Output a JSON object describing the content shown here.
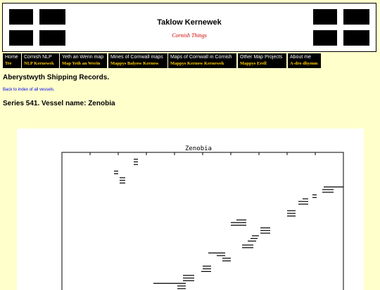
{
  "site": {
    "title": "Taklow Kernewek",
    "subtitle": "Cornish Things"
  },
  "nav": [
    {
      "label": "Home",
      "sublabel": "Tre"
    },
    {
      "label": "Cornish NLP",
      "sublabel": "NLP Kernewek"
    },
    {
      "label": "Yeth an Werin map",
      "sublabel": "Map Yeth an Werin"
    },
    {
      "label": "Mines of Cornwall maps",
      "sublabel": "Mappys Balyow Kernow"
    },
    {
      "label": "Maps of Cornwall in Cornish",
      "sublabel": "Mappys Kernow Kernewek"
    },
    {
      "label": "Other Map Projects",
      "sublabel": "Mappys Erell"
    },
    {
      "label": "About me",
      "sublabel": "A-dro dhymm"
    }
  ],
  "page": {
    "heading": "Aberystwyth Shipping Records.",
    "back_link": "Back to index of all vessels.",
    "series_heading": "Series 541. Vessel name: Zenobia"
  },
  "colors": {
    "background": "#ffffcc",
    "nav_bg": "#000000",
    "nav_sub": "#ffcc00",
    "subtitle": "#cc0000",
    "link": "#0000ee"
  },
  "chart_data": {
    "type": "timeline",
    "title": "Zenobia",
    "segments": [
      {
        "x": [
          0.255,
          0.27
        ],
        "y": 0.02
      },
      {
        "x": [
          0.255,
          0.27
        ],
        "y": 0.04
      },
      {
        "x": [
          0.255,
          0.27
        ],
        "y": 0.06
      },
      {
        "x": [
          0.185,
          0.2
        ],
        "y": 0.11
      },
      {
        "x": [
          0.185,
          0.2
        ],
        "y": 0.13
      },
      {
        "x": [
          0.205,
          0.225
        ],
        "y": 0.16
      },
      {
        "x": [
          0.205,
          0.225
        ],
        "y": 0.18
      },
      {
        "x": [
          0.205,
          0.225
        ],
        "y": 0.2
      },
      {
        "x": [
          0.93,
          1.0
        ],
        "y": 0.23
      },
      {
        "x": [
          0.925,
          0.965
        ],
        "y": 0.25
      },
      {
        "x": [
          0.925,
          0.965
        ],
        "y": 0.27
      },
      {
        "x": [
          0.89,
          0.905
        ],
        "y": 0.29
      },
      {
        "x": [
          0.89,
          0.905
        ],
        "y": 0.31
      },
      {
        "x": [
          0.855,
          0.875
        ],
        "y": 0.32
      },
      {
        "x": [
          0.84,
          0.875
        ],
        "y": 0.34
      },
      {
        "x": [
          0.84,
          0.875
        ],
        "y": 0.36
      },
      {
        "x": [
          0.8,
          0.83
        ],
        "y": 0.41
      },
      {
        "x": [
          0.8,
          0.83
        ],
        "y": 0.43
      },
      {
        "x": [
          0.8,
          0.83
        ],
        "y": 0.45
      },
      {
        "x": [
          0.62,
          0.655
        ],
        "y": 0.48
      },
      {
        "x": [
          0.6,
          0.655
        ],
        "y": 0.5
      },
      {
        "x": [
          0.6,
          0.655
        ],
        "y": 0.52
      },
      {
        "x": [
          0.705,
          0.74
        ],
        "y": 0.54
      },
      {
        "x": [
          0.705,
          0.74
        ],
        "y": 0.56
      },
      {
        "x": [
          0.705,
          0.74
        ],
        "y": 0.58
      },
      {
        "x": [
          0.675,
          0.7
        ],
        "y": 0.6
      },
      {
        "x": [
          0.67,
          0.695
        ],
        "y": 0.62
      },
      {
        "x": [
          0.66,
          0.69
        ],
        "y": 0.64
      },
      {
        "x": [
          0.64,
          0.68
        ],
        "y": 0.67
      },
      {
        "x": [
          0.64,
          0.68
        ],
        "y": 0.69
      },
      {
        "x": [
          0.52,
          0.58
        ],
        "y": 0.73
      },
      {
        "x": [
          0.55,
          0.58
        ],
        "y": 0.75
      },
      {
        "x": [
          0.57,
          0.6
        ],
        "y": 0.77
      },
      {
        "x": [
          0.57,
          0.6
        ],
        "y": 0.79
      },
      {
        "x": [
          0.5,
          0.53
        ],
        "y": 0.83
      },
      {
        "x": [
          0.5,
          0.53
        ],
        "y": 0.85
      },
      {
        "x": [
          0.495,
          0.53
        ],
        "y": 0.87
      },
      {
        "x": [
          0.43,
          0.47
        ],
        "y": 0.9
      },
      {
        "x": [
          0.43,
          0.47
        ],
        "y": 0.92
      },
      {
        "x": [
          0.43,
          0.47
        ],
        "y": 0.94
      },
      {
        "x": [
          0.325,
          0.44
        ],
        "y": 0.96
      },
      {
        "x": [
          0.41,
          0.44
        ],
        "y": 0.98
      },
      {
        "x": [
          0.41,
          0.44
        ],
        "y": 1.0
      }
    ]
  }
}
